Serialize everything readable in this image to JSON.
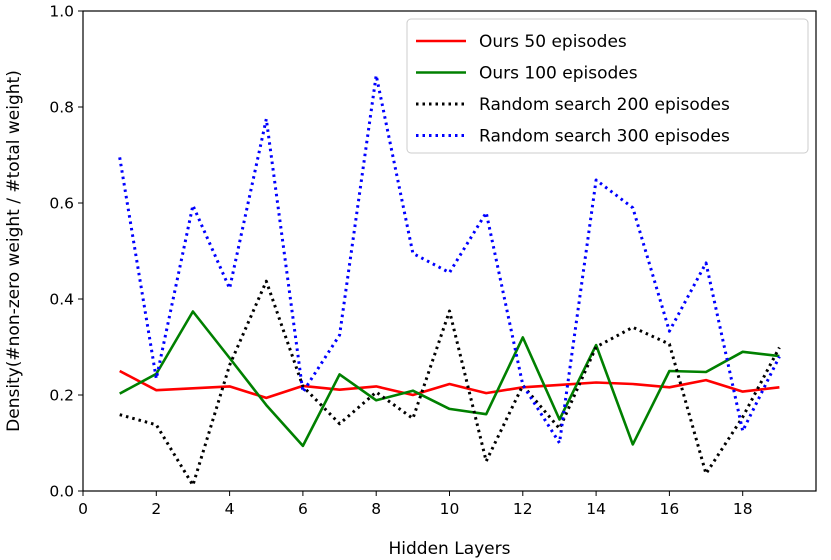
{
  "chart_data": {
    "type": "line",
    "xlabel": "Hidden Layers",
    "ylabel": "Density(#non-zero weight / #total weight)",
    "xlim": [
      0,
      20
    ],
    "ylim": [
      0.0,
      1.0
    ],
    "xticks": [
      0,
      2,
      4,
      6,
      8,
      10,
      12,
      14,
      16,
      18
    ],
    "yticks": [
      0.0,
      0.2,
      0.4,
      0.6,
      0.8,
      1.0
    ],
    "xtick_labels": [
      "0",
      "2",
      "4",
      "6",
      "8",
      "10",
      "12",
      "14",
      "16",
      "18"
    ],
    "ytick_labels": [
      "0.0",
      "0.2",
      "0.4",
      "0.6",
      "0.8",
      "1.0"
    ],
    "grid": false,
    "legend_position": "top-right",
    "x": [
      1,
      2,
      3,
      4,
      5,
      6,
      7,
      8,
      9,
      10,
      11,
      12,
      13,
      14,
      15,
      16,
      17,
      18,
      19
    ],
    "series": [
      {
        "name": "Ours 50 episodes",
        "color": "#ff0000",
        "style": "solid",
        "values": [
          0.25,
          0.21,
          0.214,
          0.218,
          0.194,
          0.219,
          0.211,
          0.218,
          0.2,
          0.223,
          0.204,
          0.216,
          0.221,
          0.226,
          0.223,
          0.216,
          0.231,
          0.207,
          0.216
        ]
      },
      {
        "name": "Ours 100 episodes",
        "color": "#008000",
        "style": "solid",
        "values": [
          0.203,
          0.244,
          0.374,
          0.277,
          0.179,
          0.094,
          0.243,
          0.189,
          0.209,
          0.171,
          0.16,
          0.32,
          0.149,
          0.304,
          0.097,
          0.25,
          0.248,
          0.29,
          0.281
        ]
      },
      {
        "name": "Random search 200 episodes",
        "color": "#000000",
        "style": "dotted",
        "values": [
          0.159,
          0.138,
          0.012,
          0.262,
          0.437,
          0.218,
          0.14,
          0.206,
          0.151,
          0.375,
          0.062,
          0.22,
          0.13,
          0.3,
          0.341,
          0.306,
          0.036,
          0.154,
          0.299
        ]
      },
      {
        "name": "Random search 300 episodes",
        "color": "#0000ff",
        "style": "dotted",
        "values": [
          0.695,
          0.234,
          0.595,
          0.422,
          0.775,
          0.206,
          0.325,
          0.866,
          0.495,
          0.455,
          0.58,
          0.221,
          0.1,
          0.648,
          0.59,
          0.333,
          0.475,
          0.125,
          0.28
        ]
      }
    ]
  }
}
